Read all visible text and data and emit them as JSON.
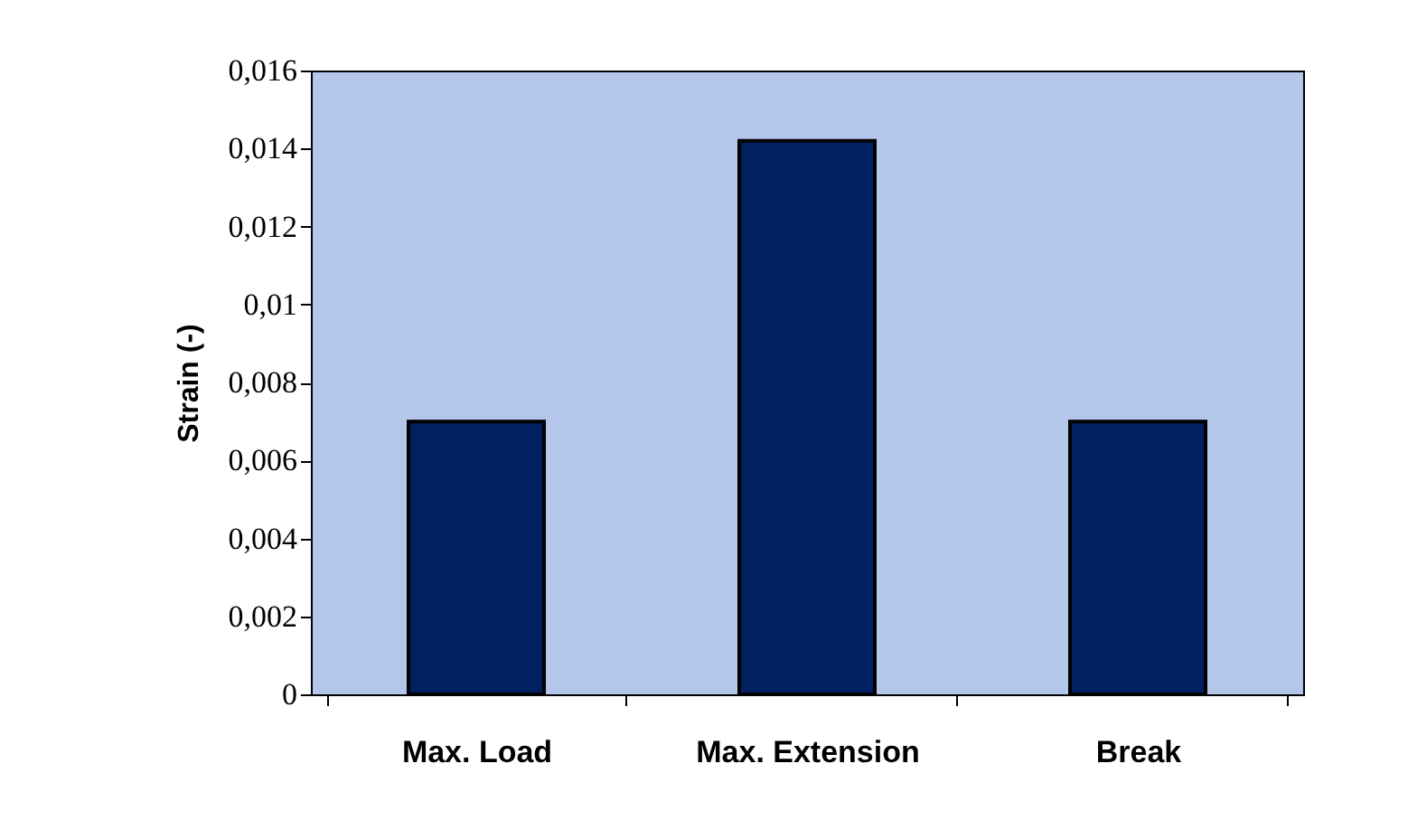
{
  "chart_data": {
    "type": "bar",
    "ylabel": "Strain (-)",
    "categories": [
      "Max. Load",
      "Max. Extension",
      "Break"
    ],
    "values": [
      0.007,
      0.0142,
      0.007
    ],
    "color": "#002060",
    "ylim": [
      0,
      0.016
    ],
    "yticks": [
      0,
      {
        "value": 0.002,
        "label": "0,002"
      },
      {
        "value": 0.004,
        "label": "0,004"
      },
      {
        "value": 0.006,
        "label": "0,006"
      },
      {
        "value": 0.008,
        "label": "0,008"
      },
      {
        "value": 0.01,
        "label": "0,01"
      },
      {
        "value": 0.012,
        "label": "0,012"
      },
      {
        "value": 0.014,
        "label": "0,014"
      },
      {
        "value": 0.016,
        "label": "0,016"
      }
    ],
    "grid": false
  }
}
